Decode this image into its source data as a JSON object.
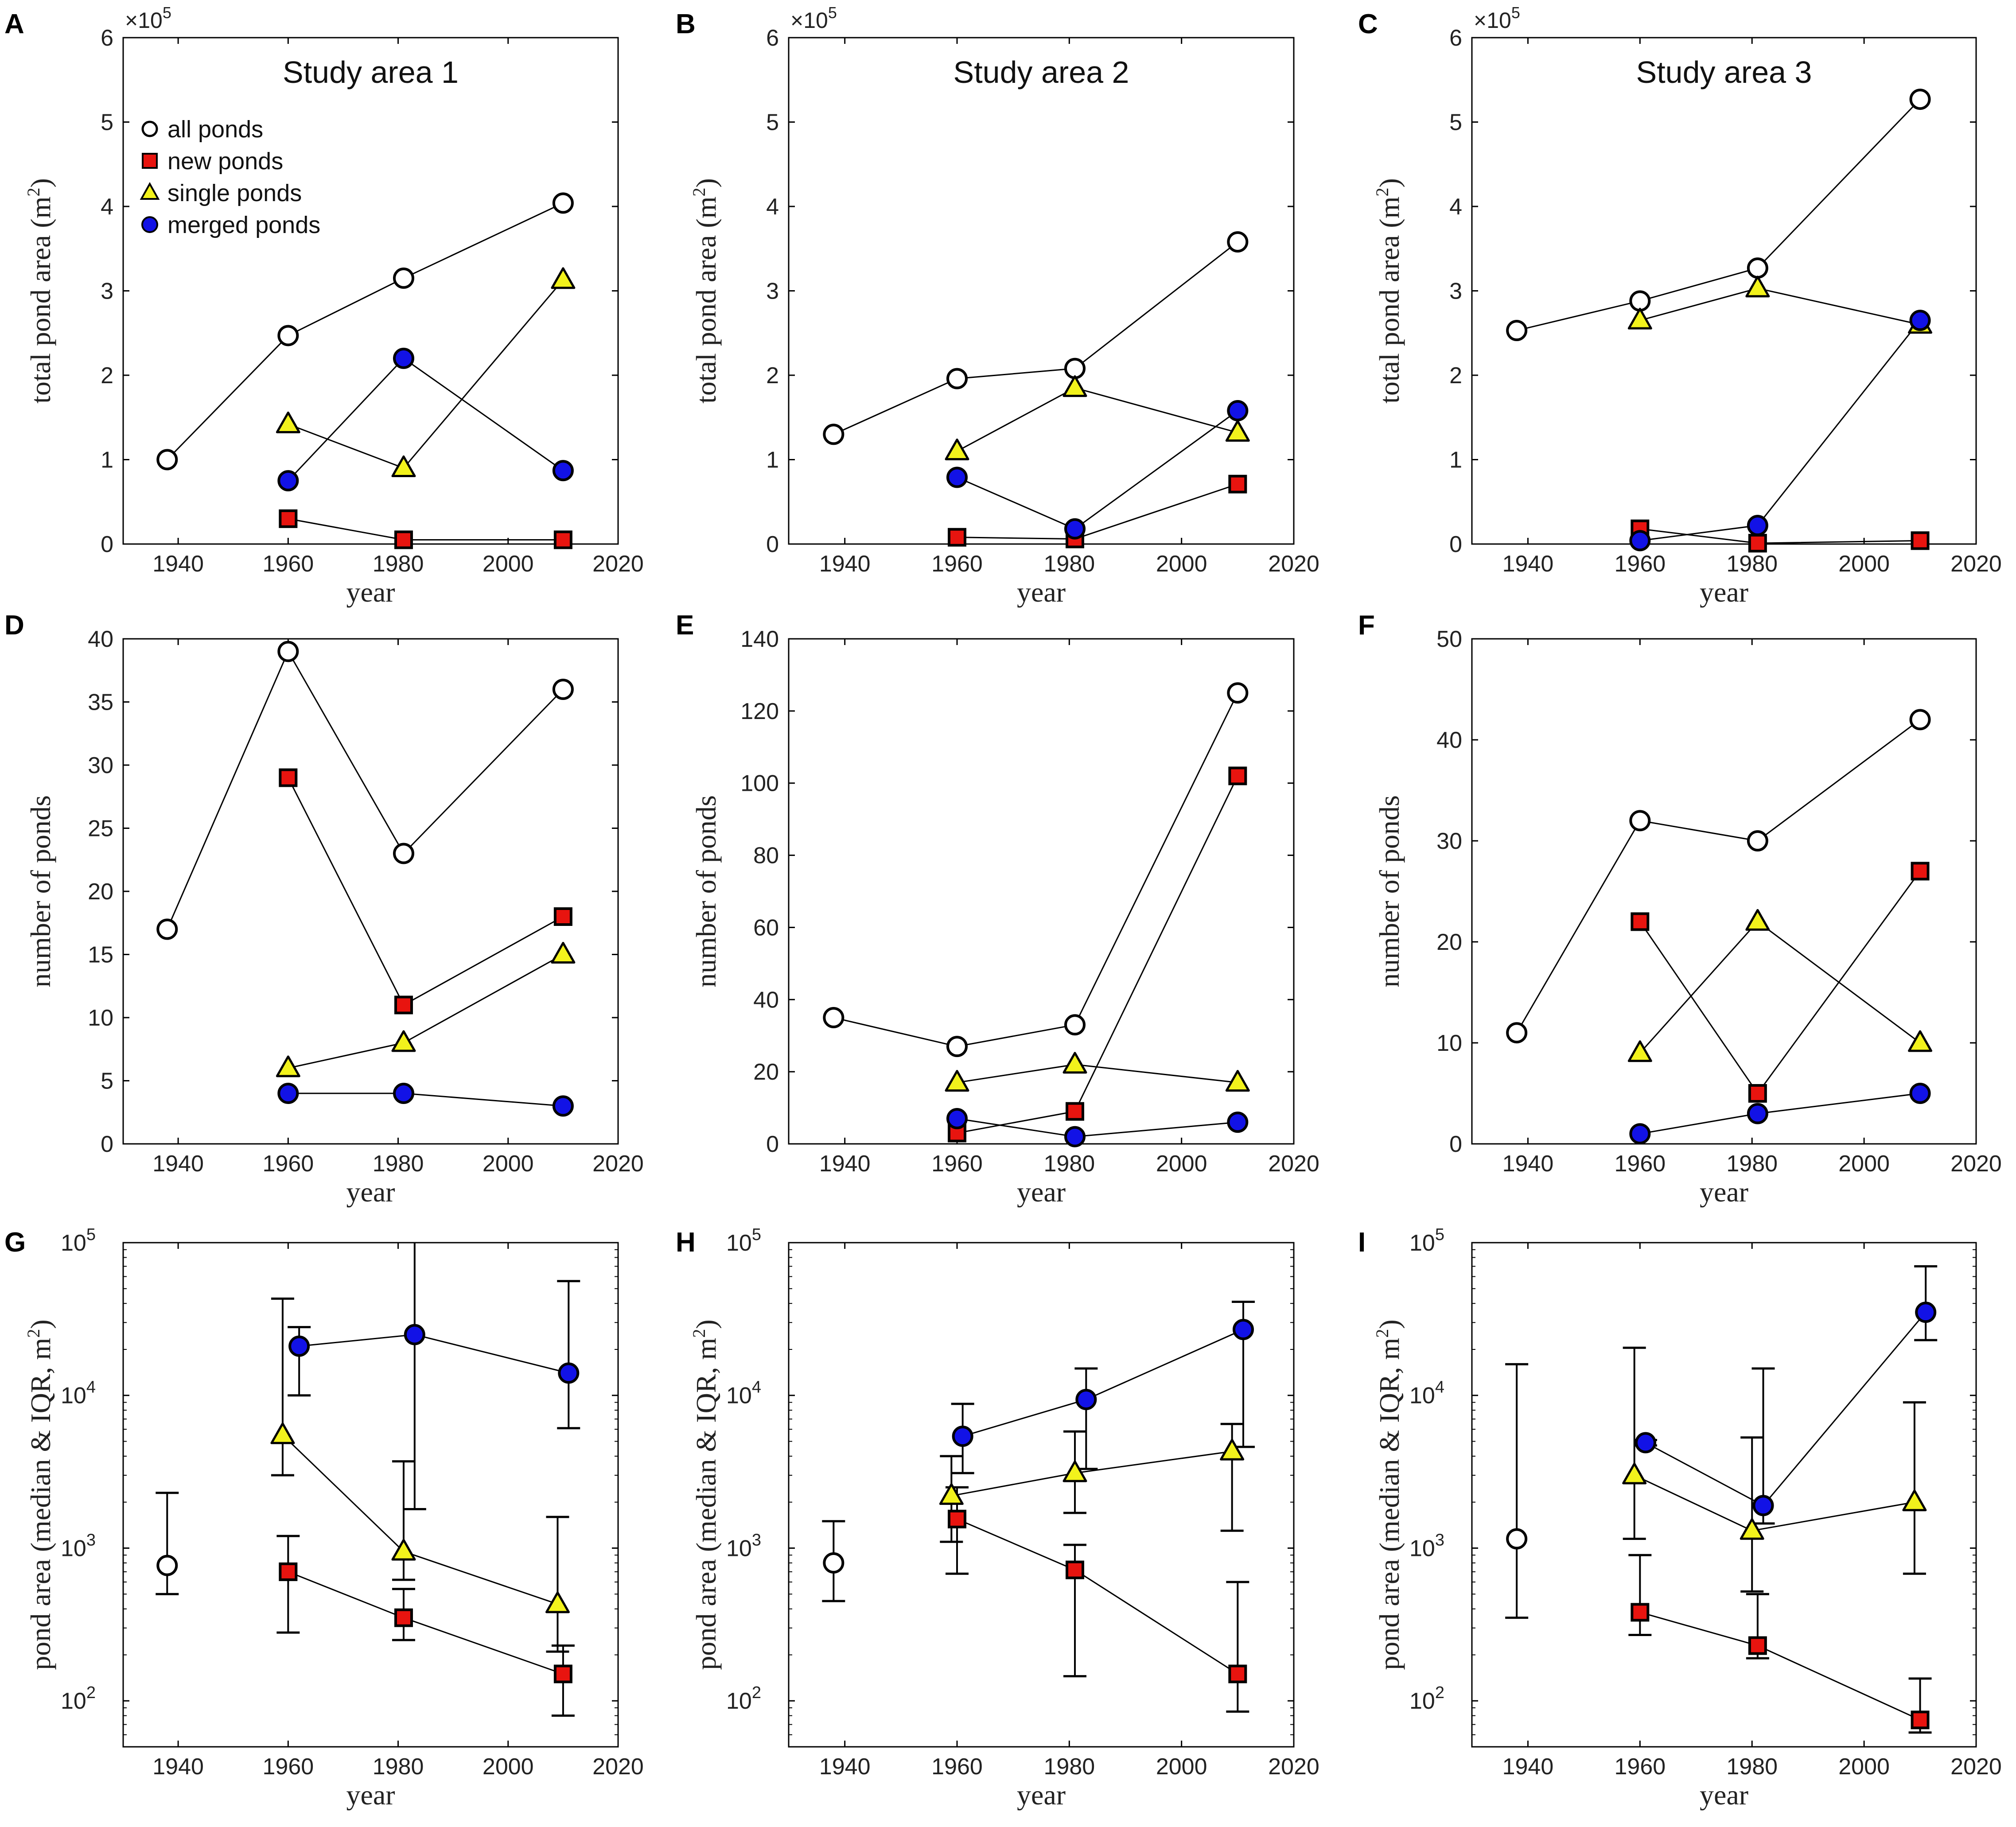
{
  "colors": {
    "all": "#ffffff",
    "new": "#e8140f",
    "single": "#f2f21c",
    "merged": "#1212e6",
    "stroke": "#000000"
  },
  "legend": {
    "all": "all ponds",
    "new": "new ponds",
    "single": "single ponds",
    "merged": "merged ponds"
  },
  "chart_data": [
    {
      "label": "A",
      "type": "line",
      "scale": "linear",
      "title": "Study area 1",
      "xlabel": "year",
      "ylabel": "total pond area (m²)",
      "ylabel_unit": "(m",
      "multiplier": "×10",
      "multiplier_exp": "5",
      "xlim": [
        1930,
        2020
      ],
      "xticks": [
        1940,
        1960,
        1980,
        2000,
        2020
      ],
      "ylim": [
        0,
        6
      ],
      "yticks": [
        0,
        1,
        2,
        3,
        4,
        5,
        6
      ],
      "ytick_labels": [
        "0",
        "1",
        "2",
        "3",
        "4",
        "5",
        "6"
      ],
      "show_legend": true,
      "series": [
        {
          "name": "all ponds",
          "key": "all",
          "x": [
            1938,
            1960,
            1981,
            2010
          ],
          "y": [
            1.0,
            2.47,
            3.15,
            4.04
          ]
        },
        {
          "name": "new ponds",
          "key": "new",
          "x": [
            1960,
            1981,
            2010
          ],
          "y": [
            0.3,
            0.05,
            0.05
          ]
        },
        {
          "name": "single ponds",
          "key": "single",
          "x": [
            1960,
            1981,
            2010
          ],
          "y": [
            1.42,
            0.9,
            3.13
          ]
        },
        {
          "name": "merged ponds",
          "key": "merged",
          "x": [
            1960,
            1981,
            2010
          ],
          "y": [
            0.75,
            2.2,
            0.87
          ]
        }
      ]
    },
    {
      "label": "B",
      "type": "line",
      "scale": "linear",
      "title": "Study area 2",
      "xlabel": "year",
      "ylabel": "total pond area (m²)",
      "ylabel_unit": "(m",
      "multiplier": "×10",
      "multiplier_exp": "5",
      "xlim": [
        1930,
        2020
      ],
      "xticks": [
        1940,
        1960,
        1980,
        2000,
        2020
      ],
      "ylim": [
        0,
        6
      ],
      "yticks": [
        0,
        1,
        2,
        3,
        4,
        5,
        6
      ],
      "ytick_labels": [
        "0",
        "1",
        "2",
        "3",
        "4",
        "5",
        "6"
      ],
      "show_legend": false,
      "series": [
        {
          "name": "all ponds",
          "key": "all",
          "x": [
            1938,
            1960,
            1981,
            2010
          ],
          "y": [
            1.3,
            1.96,
            2.08,
            3.58
          ]
        },
        {
          "name": "new ponds",
          "key": "new",
          "x": [
            1960,
            1981,
            2010
          ],
          "y": [
            0.08,
            0.06,
            0.71
          ]
        },
        {
          "name": "single ponds",
          "key": "single",
          "x": [
            1960,
            1981,
            2010
          ],
          "y": [
            1.1,
            1.85,
            1.32
          ]
        },
        {
          "name": "merged ponds",
          "key": "merged",
          "x": [
            1960,
            1981,
            2010
          ],
          "y": [
            0.79,
            0.18,
            1.58
          ]
        }
      ]
    },
    {
      "label": "C",
      "type": "line",
      "scale": "linear",
      "title": "Study area 3",
      "xlabel": "year",
      "ylabel": "total pond area (m²)",
      "ylabel_unit": "(m",
      "multiplier": "×10",
      "multiplier_exp": "5",
      "xlim": [
        1930,
        2020
      ],
      "xticks": [
        1940,
        1960,
        1980,
        2000,
        2020
      ],
      "ylim": [
        0,
        6
      ],
      "yticks": [
        0,
        1,
        2,
        3,
        4,
        5,
        6
      ],
      "ytick_labels": [
        "0",
        "1",
        "2",
        "3",
        "4",
        "5",
        "6"
      ],
      "show_legend": false,
      "series": [
        {
          "name": "all ponds",
          "key": "all",
          "x": [
            1938,
            1960,
            1981,
            2010
          ],
          "y": [
            2.53,
            2.88,
            3.27,
            5.27
          ]
        },
        {
          "name": "new ponds",
          "key": "new",
          "x": [
            1960,
            1981,
            2010
          ],
          "y": [
            0.18,
            0.01,
            0.04
          ]
        },
        {
          "name": "single ponds",
          "key": "single",
          "x": [
            1960,
            1981,
            2010
          ],
          "y": [
            2.65,
            3.03,
            2.6
          ]
        },
        {
          "name": "merged ponds",
          "key": "merged",
          "x": [
            1960,
            1981,
            2010
          ],
          "y": [
            0.04,
            0.22,
            2.65
          ]
        }
      ]
    },
    {
      "label": "D",
      "type": "line",
      "scale": "linear",
      "xlabel": "year",
      "ylabel": "number of ponds",
      "xlim": [
        1930,
        2020
      ],
      "xticks": [
        1940,
        1960,
        1980,
        2000,
        2020
      ],
      "ylim": [
        0,
        40
      ],
      "yticks": [
        0,
        5,
        10,
        15,
        20,
        25,
        30,
        35,
        40
      ],
      "ytick_labels": [
        "0",
        "5",
        "10",
        "15",
        "20",
        "25",
        "30",
        "35",
        "40"
      ],
      "series": [
        {
          "name": "all ponds",
          "key": "all",
          "x": [
            1938,
            1960,
            1981,
            2010
          ],
          "y": [
            17,
            39,
            23,
            36
          ]
        },
        {
          "name": "new ponds",
          "key": "new",
          "x": [
            1960,
            1981,
            2010
          ],
          "y": [
            29,
            11,
            18
          ]
        },
        {
          "name": "single ponds",
          "key": "single",
          "x": [
            1960,
            1981,
            2010
          ],
          "y": [
            6,
            8,
            15
          ]
        },
        {
          "name": "merged ponds",
          "key": "merged",
          "x": [
            1960,
            1981,
            2010
          ],
          "y": [
            4,
            4,
            3
          ]
        }
      ]
    },
    {
      "label": "E",
      "type": "line",
      "scale": "linear",
      "xlabel": "year",
      "ylabel": "number of ponds",
      "xlim": [
        1930,
        2020
      ],
      "xticks": [
        1940,
        1960,
        1980,
        2000,
        2020
      ],
      "ylim": [
        0,
        140
      ],
      "yticks": [
        0,
        20,
        40,
        60,
        80,
        100,
        120,
        140
      ],
      "ytick_labels": [
        "0",
        "20",
        "40",
        "60",
        "80",
        "100",
        "120",
        "140"
      ],
      "series": [
        {
          "name": "all ponds",
          "key": "all",
          "x": [
            1938,
            1960,
            1981,
            2010
          ],
          "y": [
            35,
            27,
            33,
            125
          ]
        },
        {
          "name": "new ponds",
          "key": "new",
          "x": [
            1960,
            1981,
            2010
          ],
          "y": [
            3,
            9,
            102
          ]
        },
        {
          "name": "single ponds",
          "key": "single",
          "x": [
            1960,
            1981,
            2010
          ],
          "y": [
            17,
            22,
            17
          ]
        },
        {
          "name": "merged ponds",
          "key": "merged",
          "x": [
            1960,
            1981,
            2010
          ],
          "y": [
            7,
            2,
            6
          ]
        }
      ]
    },
    {
      "label": "F",
      "type": "line",
      "scale": "linear",
      "xlabel": "year",
      "ylabel": "number of ponds",
      "xlim": [
        1930,
        2020
      ],
      "xticks": [
        1940,
        1960,
        1980,
        2000,
        2020
      ],
      "ylim": [
        0,
        50
      ],
      "yticks": [
        0,
        10,
        20,
        30,
        40,
        50
      ],
      "ytick_labels": [
        "0",
        "10",
        "20",
        "30",
        "40",
        "50"
      ],
      "series": [
        {
          "name": "all ponds",
          "key": "all",
          "x": [
            1938,
            1960,
            1981,
            2010
          ],
          "y": [
            11,
            32,
            30,
            42
          ]
        },
        {
          "name": "new ponds",
          "key": "new",
          "x": [
            1960,
            1981,
            2010
          ],
          "y": [
            22,
            5,
            27
          ]
        },
        {
          "name": "single ponds",
          "key": "single",
          "x": [
            1960,
            1981,
            2010
          ],
          "y": [
            9,
            22,
            10
          ]
        },
        {
          "name": "merged ponds",
          "key": "merged",
          "x": [
            1960,
            1981,
            2010
          ],
          "y": [
            1,
            3,
            5
          ]
        }
      ]
    },
    {
      "label": "G",
      "type": "line",
      "scale": "log",
      "xlabel": "year",
      "ylabel": "pond area (median & IQR, m²)",
      "ylabel_unit": "pond area (median & IQR, m",
      "xlim": [
        1930,
        2020
      ],
      "xticks": [
        1940,
        1960,
        1980,
        2000,
        2020
      ],
      "ylim": [
        50,
        100000
      ],
      "yticks": [
        100,
        1000,
        10000,
        100000
      ],
      "ytick_labels": [
        "10",
        "10",
        "10",
        "10"
      ],
      "ytick_exps": [
        "2",
        "3",
        "4",
        "5"
      ],
      "series": [
        {
          "name": "all ponds",
          "key": "all",
          "x": [
            1938
          ],
          "y": [
            770
          ],
          "lo": [
            500
          ],
          "hi": [
            2300
          ]
        },
        {
          "name": "new ponds",
          "key": "new",
          "x": [
            1960,
            1981,
            2010
          ],
          "y": [
            700,
            350,
            150
          ],
          "lo": [
            280,
            250,
            80
          ],
          "hi": [
            1200,
            540,
            230
          ]
        },
        {
          "name": "single ponds",
          "key": "single",
          "x": [
            1959,
            1981,
            2009
          ],
          "y": [
            5500,
            950,
            430
          ],
          "lo": [
            3000,
            620,
            210
          ],
          "hi": [
            43000,
            3700,
            1600
          ]
        },
        {
          "name": "merged ponds",
          "key": "merged",
          "x": [
            1962,
            1983,
            2011
          ],
          "y": [
            21000,
            25000,
            14000
          ],
          "lo": [
            10000,
            1800,
            6100
          ],
          "hi": [
            28000,
            100000,
            56000
          ]
        }
      ]
    },
    {
      "label": "H",
      "type": "line",
      "scale": "log",
      "xlabel": "year",
      "ylabel": "pond area (median & IQR, m²)",
      "ylabel_unit": "pond area (median & IQR, m",
      "xlim": [
        1930,
        2020
      ],
      "xticks": [
        1940,
        1960,
        1980,
        2000,
        2020
      ],
      "ylim": [
        50,
        100000
      ],
      "yticks": [
        100,
        1000,
        10000,
        100000
      ],
      "ytick_labels": [
        "10",
        "10",
        "10",
        "10"
      ],
      "ytick_exps": [
        "2",
        "3",
        "4",
        "5"
      ],
      "series": [
        {
          "name": "all ponds",
          "key": "all",
          "x": [
            1938
          ],
          "y": [
            800
          ],
          "lo": [
            450
          ],
          "hi": [
            1500
          ]
        },
        {
          "name": "new ponds",
          "key": "new",
          "x": [
            1960,
            1981,
            2010
          ],
          "y": [
            1550,
            720,
            150
          ],
          "lo": [
            680,
            145,
            85
          ],
          "hi": [
            2500,
            1050,
            600
          ]
        },
        {
          "name": "single ponds",
          "key": "single",
          "x": [
            1959,
            1981,
            2009
          ],
          "y": [
            2200,
            3100,
            4300
          ],
          "lo": [
            1100,
            1700,
            1300
          ],
          "hi": [
            4000,
            5800,
            6500
          ]
        },
        {
          "name": "merged ponds",
          "key": "merged",
          "x": [
            1961,
            1983,
            2011
          ],
          "y": [
            5400,
            9400,
            27000
          ],
          "lo": [
            3100,
            3300,
            4600
          ],
          "hi": [
            8800,
            15000,
            41000
          ]
        }
      ]
    },
    {
      "label": "I",
      "type": "line",
      "scale": "log",
      "xlabel": "year",
      "ylabel": "pond area (median & IQR, m²)",
      "ylabel_unit": "pond area (median & IQR, m",
      "xlim": [
        1930,
        2020
      ],
      "xticks": [
        1940,
        1960,
        1980,
        2000,
        2020
      ],
      "ylim": [
        50,
        100000
      ],
      "yticks": [
        100,
        1000,
        10000,
        100000
      ],
      "ytick_labels": [
        "10",
        "10",
        "10",
        "10"
      ],
      "ytick_exps": [
        "2",
        "3",
        "4",
        "5"
      ],
      "series": [
        {
          "name": "all ponds",
          "key": "all",
          "x": [
            1938
          ],
          "y": [
            1150
          ],
          "lo": [
            350
          ],
          "hi": [
            16000
          ]
        },
        {
          "name": "new ponds",
          "key": "new",
          "x": [
            1960,
            1981,
            2010
          ],
          "y": [
            380,
            230,
            75
          ],
          "lo": [
            270,
            190,
            62
          ],
          "hi": [
            900,
            500,
            140
          ]
        },
        {
          "name": "single ponds",
          "key": "single",
          "x": [
            1959,
            1980,
            2009
          ],
          "y": [
            3000,
            1300,
            2000
          ],
          "lo": [
            1150,
            520,
            680
          ],
          "hi": [
            20500,
            5300,
            9000
          ]
        },
        {
          "name": "merged ponds",
          "key": "merged",
          "x": [
            1961,
            1982,
            2011
          ],
          "y": [
            4900,
            1900,
            35000
          ],
          "lo": [
            4700,
            1450,
            23000
          ],
          "hi": [
            5100,
            15000,
            70000
          ]
        }
      ]
    }
  ]
}
